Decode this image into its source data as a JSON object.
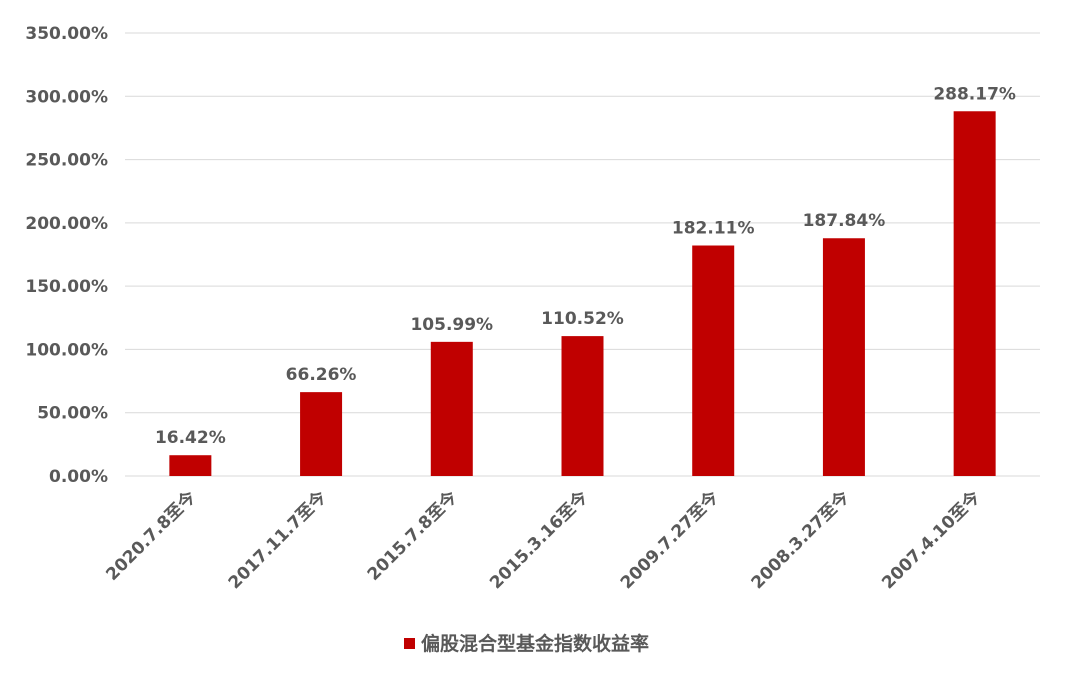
{
  "chart_data": {
    "type": "bar",
    "categories": [
      "2020.7.8至今",
      "2017.11.7至今",
      "2015.7.8至今",
      "2015.3.16至今",
      "2009.7.27至今",
      "2008.3.27至今",
      "2007.4.10至今"
    ],
    "series": [
      {
        "name": "偏股混合型基金指数收益率",
        "color": "#c00000",
        "values": [
          16.42,
          66.26,
          105.99,
          110.52,
          182.11,
          187.84,
          288.17
        ],
        "value_labels": [
          "16.42%",
          "66.26%",
          "105.99%",
          "110.52%",
          "182.11%",
          "187.84%",
          "288.17%"
        ]
      }
    ],
    "ylim": [
      0,
      350
    ],
    "yticks": [
      {
        "value": 0,
        "label": "0.00%"
      },
      {
        "value": 50,
        "label": "50.00%"
      },
      {
        "value": 100,
        "label": "100.00%"
      },
      {
        "value": 150,
        "label": "150.00%"
      },
      {
        "value": 200,
        "label": "200.00%"
      },
      {
        "value": 250,
        "label": "250.00%"
      },
      {
        "value": 300,
        "label": "300.00%"
      },
      {
        "value": 350,
        "label": "350.00%"
      }
    ],
    "grid": true,
    "legend": "bottom"
  }
}
